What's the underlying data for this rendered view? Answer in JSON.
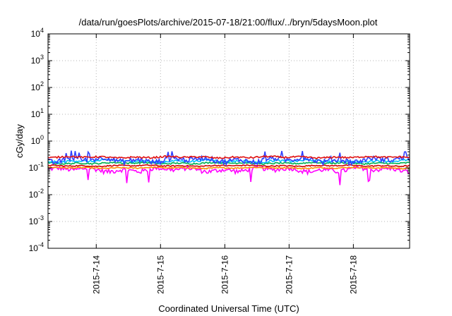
{
  "chart_data": {
    "type": "line",
    "title": "/data/run/goesPlots/archive/2015-07-18/21:00/flux/../bryn/5daysMoon.plot",
    "xlabel": "Coordinated Universal Time (UTC)",
    "ylabel": "cGy/day",
    "x_scale": "time",
    "y_scale": "log",
    "xlim": [
      "2015-07-13T06:00",
      "2015-07-18T21:00"
    ],
    "ylim": [
      0.0001,
      10000
    ],
    "x_ticks": [
      "2015-7-14",
      "2015-7-15",
      "2015-7-16",
      "2015-7-17",
      "2015-7-18"
    ],
    "y_ticks": [
      {
        "value": 0.0001,
        "base": "10",
        "exp": "-4"
      },
      {
        "value": 0.001,
        "base": "10",
        "exp": "-3"
      },
      {
        "value": 0.01,
        "base": "10",
        "exp": "-2"
      },
      {
        "value": 0.1,
        "base": "10",
        "exp": "-1"
      },
      {
        "value": 1,
        "base": "10",
        "exp": "0"
      },
      {
        "value": 10,
        "base": "10",
        "exp": "1"
      },
      {
        "value": 100,
        "base": "10",
        "exp": "2"
      },
      {
        "value": 1000,
        "base": "10",
        "exp": "3"
      },
      {
        "value": 10000,
        "base": "10",
        "exp": "4"
      }
    ],
    "grid": true,
    "legend": "none",
    "series": [
      {
        "color": "#ff00ff",
        "level": 0.085,
        "noise": 0.3
      },
      {
        "color": "#ff8c00",
        "level": 0.1,
        "noise": 0.08
      },
      {
        "color": "#d00000",
        "level": 0.12,
        "noise": 0.08
      },
      {
        "color": "#00b050",
        "level": 0.15,
        "noise": 0.1
      },
      {
        "color": "#00bfff",
        "level": 0.18,
        "noise": 0.15
      },
      {
        "color": "#3040ff",
        "level": 0.2,
        "noise": 0.35
      },
      {
        "color": "#e01010",
        "level": 0.25,
        "noise": 0.12
      }
    ]
  }
}
